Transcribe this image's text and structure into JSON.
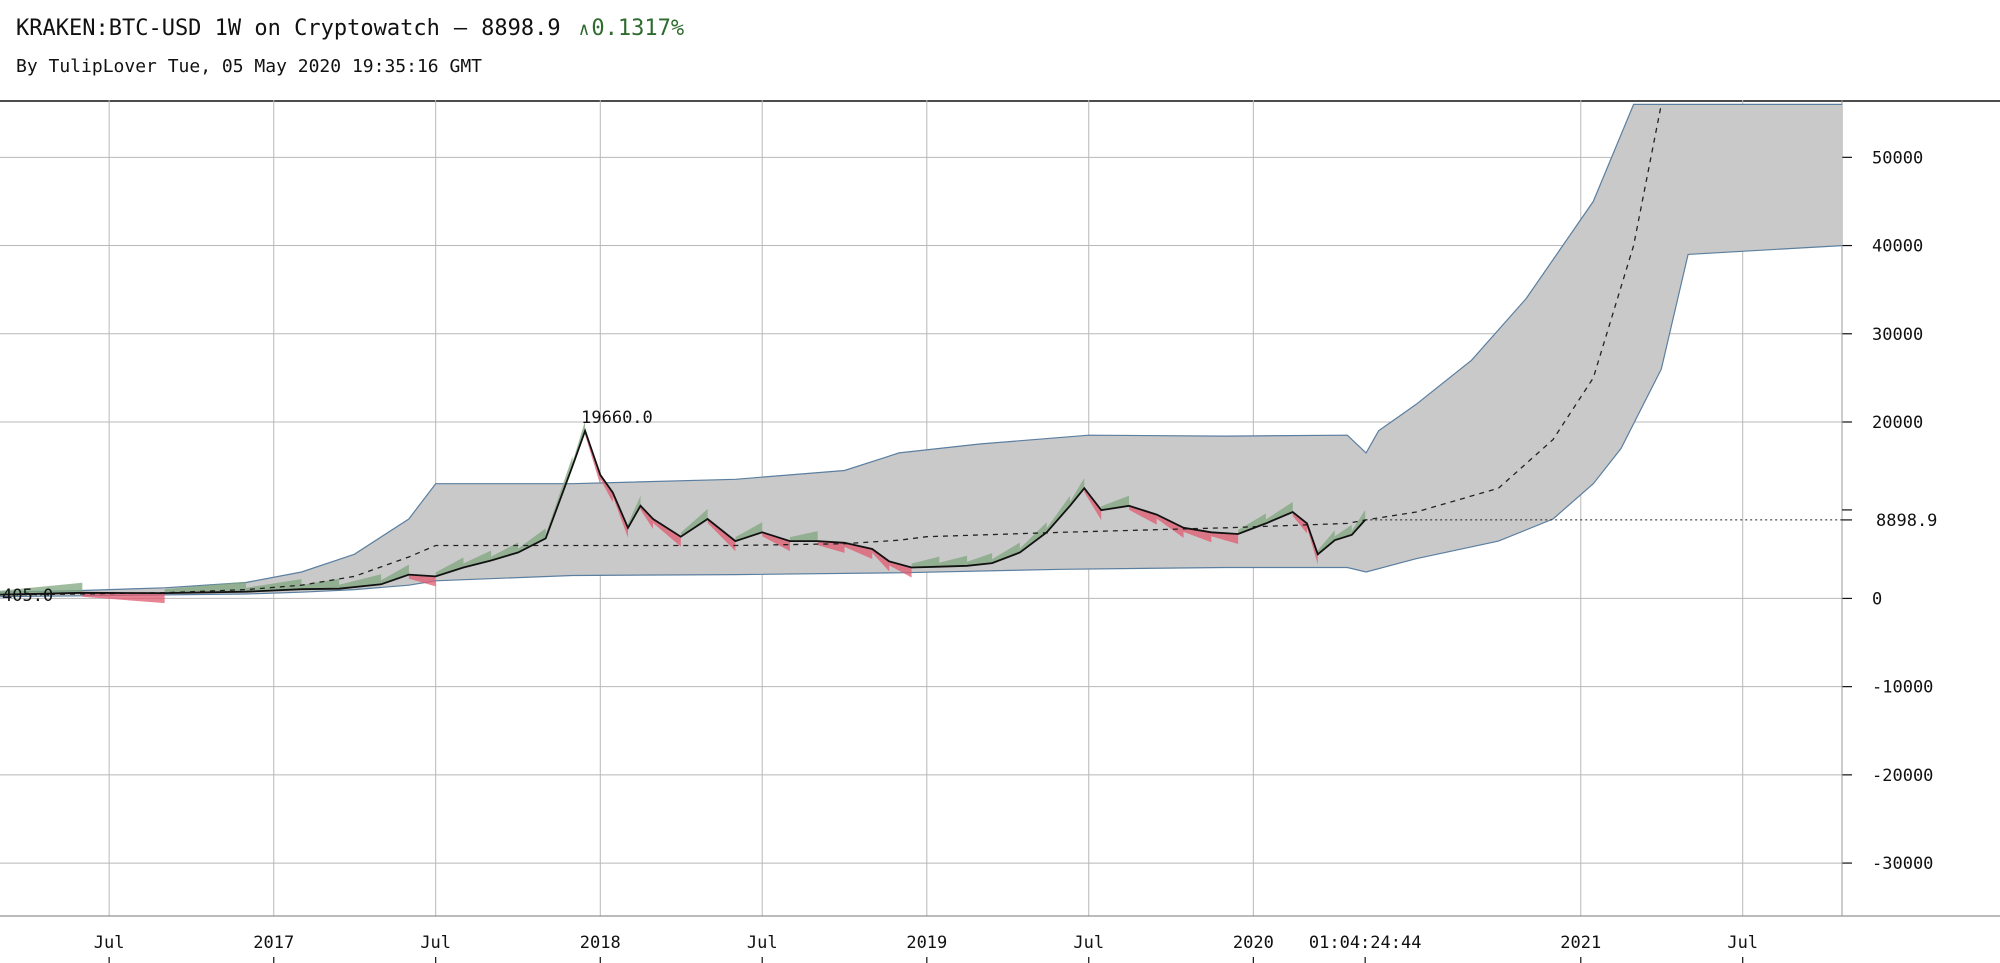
{
  "header": {
    "title": "KRAKEN:BTC-USD 1W on Cryptowatch",
    "separator": "—",
    "price": "8898.9",
    "change_arrow": "∧",
    "change": "0.1317%",
    "byline": "By TulipLover Tue, 05 May 2020 19:35:16 GMT"
  },
  "colors": {
    "band_fill": "#c9c9c9",
    "band_edge": "#5b7fa0",
    "price_line": "#111111",
    "up_fill": "#7fa57f",
    "down_fill": "#e05a70",
    "grid": "#b8b8b8",
    "change_up": "#2e6b2e"
  },
  "chart_data": {
    "type": "line",
    "title": "KRAKEN:BTC-USD 1W on Cryptowatch",
    "y_ticks": [
      "50000",
      "40000",
      "30000",
      "20000",
      "0",
      "-10000",
      "-20000",
      "-30000"
    ],
    "y_tick_values": [
      50000,
      40000,
      30000,
      20000,
      0,
      -10000,
      -20000,
      -30000
    ],
    "ylim": [
      -36000,
      56500
    ],
    "x_ticks": [
      "Jul",
      "2017",
      "Jul",
      "2018",
      "Jul",
      "2019",
      "Jul",
      "2020",
      "2021",
      "Jul"
    ],
    "x_tick_dates": [
      "2016-07-01",
      "2017-01-01",
      "2017-07-01",
      "2018-01-01",
      "2018-07-01",
      "2019-01-01",
      "2019-07-01",
      "2020-01-01",
      "2021-01-01",
      "2021-07-01"
    ],
    "xlim": [
      "2016-03-01",
      "2021-10-20"
    ],
    "countdown_label": "01:04:24:44",
    "countdown_date": "2020-05-05",
    "last_price_label": "8898.9",
    "last_price": 8898.9,
    "start_label": "405.0",
    "start_date": "2016-03-01",
    "start_value": 405,
    "peak_label": "19660.0",
    "peak_date": "2017-12-24",
    "peak_value": 19660,
    "grid": true,
    "series": [
      {
        "x": [
          "2016-03-01",
          "2016-06-01",
          "2016-09-01",
          "2016-12-01",
          "2017-02-01",
          "2017-03-15",
          "2017-05-01",
          "2017-06-01",
          "2017-07-01",
          "2017-08-01",
          "2017-09-01",
          "2017-10-01",
          "2017-11-01",
          "2017-12-01",
          "2017-12-15",
          "2018-01-01",
          "2018-01-15",
          "2018-02-01",
          "2018-02-15",
          "2018-03-01",
          "2018-04-01",
          "2018-05-01",
          "2018-06-01",
          "2018-07-01",
          "2018-08-01",
          "2018-09-01",
          "2018-10-01",
          "2018-11-01",
          "2018-11-20",
          "2018-12-15",
          "2019-01-15",
          "2019-02-15",
          "2019-03-15",
          "2019-04-15",
          "2019-05-15",
          "2019-06-10",
          "2019-06-26",
          "2019-07-15",
          "2019-08-15",
          "2019-09-15",
          "2019-10-15",
          "2019-11-15",
          "2019-12-15",
          "2020-01-15",
          "2020-02-14",
          "2020-03-01",
          "2020-03-13",
          "2020-04-01",
          "2020-04-20",
          "2020-05-05"
        ],
        "values": [
          420,
          640,
          600,
          760,
          1050,
          1100,
          1600,
          2700,
          2500,
          3500,
          4300,
          5200,
          6800,
          15000,
          19000,
          14000,
          12000,
          8000,
          10500,
          9000,
          7000,
          9000,
          6500,
          7500,
          6500,
          6500,
          6300,
          5600,
          4200,
          3500,
          3600,
          3700,
          4000,
          5200,
          7500,
          10500,
          12500,
          10000,
          10500,
          9500,
          8000,
          7500,
          7300,
          8500,
          9800,
          8500,
          5000,
          6600,
          7200,
          8898.9
        ]
      },
      {
        "x": [
          "2016-03-01",
          "2016-06-01",
          "2016-09-01",
          "2016-12-01",
          "2017-02-01",
          "2017-04-01",
          "2017-06-01",
          "2017-07-01",
          "2017-12-01",
          "2018-06-01",
          "2018-10-01",
          "2018-12-01",
          "2019-01-01",
          "2019-06-01",
          "2019-12-01",
          "2020-04-15",
          "2020-05-06",
          "2020-07-01",
          "2020-10-01",
          "2020-12-01",
          "2021-01-15",
          "2021-03-01",
          "2021-04-01"
        ],
        "values": [
          400,
          500,
          650,
          1000,
          1500,
          2500,
          4700,
          6000,
          6000,
          6000,
          6200,
          6600,
          7000,
          7500,
          8000,
          8500,
          8900,
          9800,
          12500,
          18000,
          25000,
          40000,
          56000
        ]
      },
      {
        "x": [
          "2016-03-01",
          "2016-06-01",
          "2016-09-01",
          "2016-12-01",
          "2017-02-01",
          "2017-04-01",
          "2017-06-01",
          "2017-07-01",
          "2017-12-01",
          "2018-06-01",
          "2018-10-01",
          "2018-12-01",
          "2019-03-01",
          "2019-07-01",
          "2019-12-01",
          "2020-04-15",
          "2020-05-06",
          "2020-05-20",
          "2020-07-01",
          "2020-09-01",
          "2020-11-01",
          "2021-01-15",
          "2021-03-01",
          "2021-04-01",
          "2021-05-01",
          "2021-10-20"
        ],
        "values": [
          700,
          900,
          1200,
          1800,
          3000,
          5000,
          9000,
          13000,
          13000,
          13500,
          14500,
          16500,
          17500,
          18500,
          18400,
          18500,
          16500,
          19000,
          22000,
          27000,
          34000,
          45000,
          56000,
          56000,
          56000,
          56000
        ]
      },
      {
        "x": [
          "2016-03-01",
          "2016-06-01",
          "2016-09-01",
          "2016-12-01",
          "2017-02-01",
          "2017-04-01",
          "2017-06-01",
          "2017-07-01",
          "2017-12-01",
          "2018-06-01",
          "2018-12-01",
          "2019-06-01",
          "2019-12-01",
          "2020-04-15",
          "2020-05-06",
          "2020-07-01",
          "2020-10-01",
          "2020-12-01",
          "2021-01-15",
          "2021-02-15",
          "2021-04-01",
          "2021-05-01",
          "2021-10-20"
        ],
        "values": [
          200,
          300,
          400,
          500,
          700,
          1000,
          1500,
          2000,
          2600,
          2700,
          2900,
          3300,
          3500,
          3500,
          3000,
          4500,
          6500,
          9000,
          13000,
          17000,
          26000,
          39000,
          40000
        ]
      }
    ]
  }
}
